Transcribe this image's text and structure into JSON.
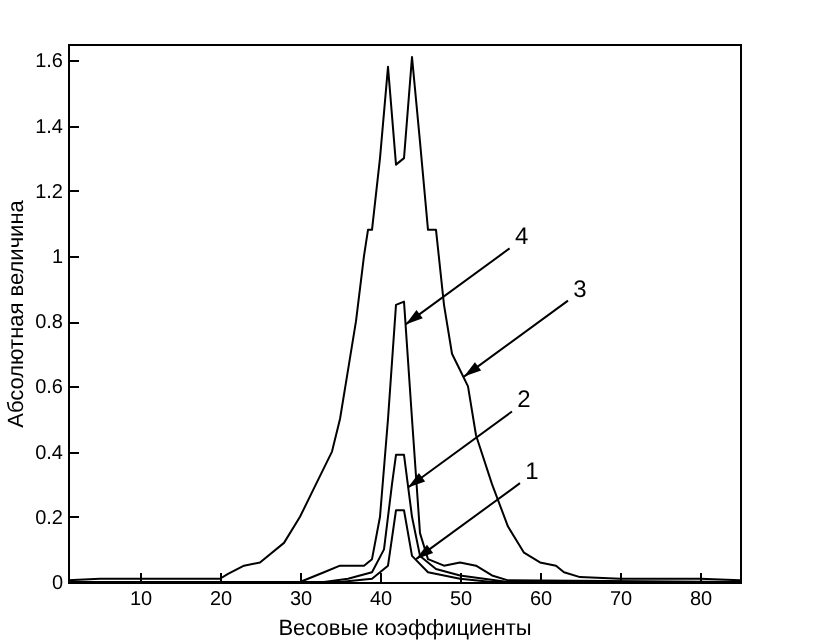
{
  "chart_data": {
    "type": "line",
    "xlabel": "Весовые коэффициенты",
    "ylabel": "Абсолютная величина",
    "xlim": [
      1,
      85
    ],
    "ylim": [
      0,
      1.65
    ],
    "xticks": [
      10,
      20,
      30,
      40,
      50,
      60,
      70,
      80
    ],
    "yticks": [
      0,
      0.2,
      0.4,
      0.6,
      0.8,
      1,
      1.2,
      1.4,
      1.6
    ],
    "grid": false,
    "legend": false,
    "marker": "none",
    "line_style": "solid",
    "series": [
      {
        "color": "#000000",
        "x": [
          1,
          35,
          39,
          41,
          42,
          43,
          44,
          46,
          50,
          54,
          85
        ],
        "values": [
          0,
          0,
          0.01,
          0.05,
          0.22,
          0.22,
          0.08,
          0.03,
          0.01,
          0,
          0
        ]
      },
      {
        "color": "#000000",
        "x": [
          1,
          33,
          36,
          39,
          40.5,
          41.5,
          42,
          43,
          44,
          45,
          47,
          50,
          53,
          56,
          85
        ],
        "values": [
          0,
          0,
          0.01,
          0.03,
          0.1,
          0.3,
          0.39,
          0.39,
          0.2,
          0.08,
          0.04,
          0.02,
          0.01,
          0,
          0
        ]
      },
      {
        "color": "#000000",
        "x": [
          1,
          5,
          20,
          21,
          23,
          25,
          28,
          30,
          32,
          34,
          35,
          36,
          37,
          38,
          38.5,
          39,
          40,
          41,
          42,
          43,
          44,
          45,
          46,
          47,
          48,
          49,
          50,
          51,
          52,
          54,
          56,
          58,
          60,
          62,
          63,
          65,
          70,
          80,
          85
        ],
        "values": [
          0.005,
          0.01,
          0.01,
          0.025,
          0.05,
          0.06,
          0.12,
          0.2,
          0.3,
          0.4,
          0.5,
          0.65,
          0.8,
          1.0,
          1.08,
          1.08,
          1.3,
          1.58,
          1.28,
          1.3,
          1.61,
          1.35,
          1.08,
          1.08,
          0.85,
          0.7,
          0.65,
          0.6,
          0.45,
          0.3,
          0.17,
          0.09,
          0.06,
          0.05,
          0.03,
          0.015,
          0.01,
          0.01,
          0.005
        ]
      },
      {
        "color": "#000000",
        "x": [
          1,
          30,
          31,
          33,
          35,
          38,
          39,
          40,
          41,
          42,
          43,
          44,
          45,
          46,
          48,
          50,
          52,
          54,
          56,
          85
        ],
        "values": [
          0,
          0,
          0.01,
          0.03,
          0.05,
          0.05,
          0.07,
          0.2,
          0.5,
          0.85,
          0.86,
          0.5,
          0.15,
          0.07,
          0.05,
          0.06,
          0.05,
          0.02,
          0.005,
          0
        ]
      }
    ],
    "annotations": [
      {
        "text": "1",
        "x": 44.5,
        "y": 0.07
      },
      {
        "text": "2",
        "x": 43.5,
        "y": 0.29
      },
      {
        "text": "3",
        "x": 50.5,
        "y": 0.63
      },
      {
        "text": "4",
        "x": 43.2,
        "y": 0.79
      }
    ]
  }
}
